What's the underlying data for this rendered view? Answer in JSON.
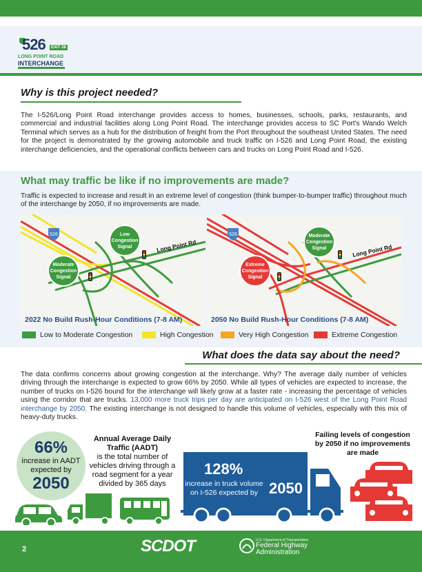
{
  "header": {
    "logo": {
      "number": "526",
      "exit": "EXIT 28",
      "line1": "LONG POINT ROAD",
      "line2": "INTERCHANGE"
    }
  },
  "need": {
    "heading": "Why is this project needed?",
    "paragraph": "The I-526/Long Point Road interchange provides access to homes, businesses, schools, parks, restaurants, and commercial and industrial facilities along Long Point Road. The interchange provides access to SC Port's Wando Welch Terminal which serves as a hub for the distribution of freight from the Port throughout the southeast United States. The need for the project is demonstrated by the growing automobile and truck traffic on I-526 and Long Point Road, the existing interchange deficiencies, and the operational conflicts between cars and trucks on Long Point Road and I-526."
  },
  "traffic": {
    "heading": "What may traffic be like if no improvements are made?",
    "paragraph": "Traffic is expected to increase and result in an extreme level of congestion (think bumper-to-bumper traffic) throughout much of the interchange by 2050, if no improvements are made.",
    "maps": [
      {
        "caption": "2022 No Build Rush-Hour Conditions (7-8 AM)",
        "shield": "526",
        "road_label": "Long Point Rd",
        "signals": [
          {
            "label_lines": [
              "Low",
              "Congestion",
              "Signal"
            ],
            "color": "#3e9a3f"
          },
          {
            "label_lines": [
              "Moderate",
              "Congestion",
              "Signal"
            ],
            "color": "#3e9a3f"
          }
        ]
      },
      {
        "caption": "2050 No Build Rush-Hour Conditions (7-8 AM)",
        "shield": "526",
        "road_label": "Long Point Rd",
        "signals": [
          {
            "label_lines": [
              "Moderate",
              "Congestion",
              "Signal"
            ],
            "color": "#3e9a3f"
          },
          {
            "label_lines": [
              "Extreme",
              "Congestion",
              "Signal"
            ],
            "color": "#e53935"
          }
        ]
      }
    ],
    "legend": [
      {
        "label": "Low to Moderate Congestion",
        "color": "#3e9a3f"
      },
      {
        "label": "High Congestion",
        "color": "#f2e52a"
      },
      {
        "label": "Very High Congestion",
        "color": "#f5a623"
      },
      {
        "label": "Extreme Congestion",
        "color": "#e53935"
      }
    ]
  },
  "data_need": {
    "heading": "What does the data say about the need?",
    "paragraph_part1": "The data confirms concerns about growing congestion at the interchange. Why? The average daily number of vehicles driving through the interchange is expected to grow 66% by 2050. While all types of vehicles are expected to increase, the number of trucks on I-526 bound for the interchange will likely grow at a faster rate - increasing the percentage of vehicles using the corridor that are trucks. ",
    "paragraph_highlight": "13,000 more truck trips per day are anticipated on I-526 west of the Long Point Road interchange by 2050.",
    "paragraph_part2": " The existing interchange is not designed to handle this volume of vehicles, especially with this mix of heavy-duty trucks."
  },
  "stats": {
    "aadt_percent": "66%",
    "aadt_text": "increase in AADT expected by",
    "aadt_year": "2050",
    "aadt_title": "Annual Average Daily Traffic (AADT)",
    "aadt_definition": "is the total number of vehicles driving through a road segment for a year divided by 365 days",
    "truck_percent": "128%",
    "truck_text": "increase in truck volume on I-526 expected by",
    "truck_year": "2050",
    "failing_text": "Failing levels of congestion by 2050 if no improvements are made"
  },
  "footer": {
    "page_number": "2",
    "scdot": "SCDOT",
    "fhwa_small": "U.S. Department of Transportation",
    "fhwa_line1": "Federal Highway",
    "fhwa_line2": "Administration"
  },
  "colors": {
    "brand_green": "#3e9a3f",
    "navy": "#1f3a66",
    "truck_blue": "#1e5c9a",
    "alert_red": "#e53935"
  }
}
